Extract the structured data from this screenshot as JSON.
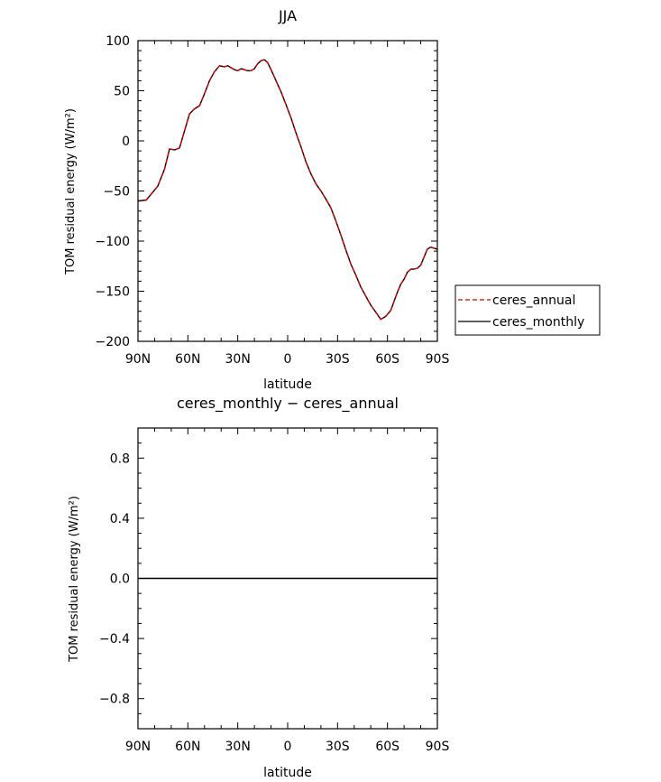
{
  "chart_data": [
    {
      "type": "line",
      "title": "JJA",
      "xlabel": "latitude",
      "ylabel": "TOM residual energy  (W/m²)",
      "xlim": [
        90,
        -90
      ],
      "ylim": [
        -200,
        100
      ],
      "x_ticks": [
        90,
        60,
        30,
        0,
        -30,
        -60,
        -90
      ],
      "x_tick_labels": [
        "90N",
        "60N",
        "30N",
        "0",
        "30S",
        "60S",
        "90S"
      ],
      "y_ticks": [
        100,
        50,
        0,
        -50,
        -100,
        -150,
        -200
      ],
      "y_tick_labels": [
        "100",
        "50",
        "0",
        "−50",
        "−100",
        "−150",
        "−200"
      ],
      "legend": {
        "position": "right",
        "entries": [
          {
            "name": "ceres_annual",
            "color": "#cc0000",
            "style": "dashed"
          },
          {
            "name": "ceres_monthly",
            "color": "#000000",
            "style": "solid"
          }
        ]
      },
      "x": [
        90,
        85,
        82,
        78,
        74,
        71,
        68,
        65,
        62,
        59,
        56,
        53,
        50,
        47,
        44,
        41,
        38,
        36,
        34,
        32,
        30,
        28,
        26,
        24,
        22,
        20,
        18,
        16,
        14,
        12,
        10,
        7,
        4,
        1,
        -2,
        -5,
        -8,
        -11,
        -14,
        -17,
        -20,
        -23,
        -26,
        -29,
        -32,
        -35,
        -38,
        -41,
        -44,
        -47,
        -50,
        -53,
        -56,
        -59,
        -62,
        -64,
        -66,
        -68,
        -70,
        -72,
        -74,
        -76,
        -78,
        -80,
        -82,
        -84,
        -86,
        -88,
        -90
      ],
      "series": [
        {
          "name": "ceres_annual",
          "color": "#cc0000",
          "values": [
            -60,
            -59,
            -53,
            -45,
            -28,
            -8,
            -9,
            -7,
            10,
            27,
            32,
            35,
            47,
            60,
            69,
            75,
            74,
            75,
            73,
            71,
            70,
            72,
            71,
            70,
            70,
            72,
            77,
            80,
            81,
            78,
            71,
            60,
            49,
            36,
            23,
            8,
            -6,
            -21,
            -33,
            -43,
            -50,
            -58,
            -67,
            -80,
            -94,
            -109,
            -123,
            -134,
            -146,
            -155,
            -164,
            -171,
            -178,
            -175,
            -169,
            -160,
            -151,
            -143,
            -138,
            -131,
            -128,
            -128,
            -127,
            -124,
            -116,
            -108,
            -106,
            -107,
            -108
          ]
        },
        {
          "name": "ceres_monthly",
          "color": "#000000",
          "values": [
            -60,
            -59,
            -53,
            -45,
            -28,
            -8,
            -9,
            -7,
            10,
            27,
            32,
            35,
            47,
            60,
            69,
            75,
            74,
            75,
            73,
            71,
            70,
            72,
            71,
            70,
            70,
            72,
            77,
            80,
            81,
            78,
            71,
            60,
            49,
            36,
            23,
            8,
            -6,
            -21,
            -33,
            -43,
            -50,
            -58,
            -67,
            -80,
            -94,
            -109,
            -123,
            -134,
            -146,
            -155,
            -164,
            -171,
            -178,
            -175,
            -169,
            -160,
            -151,
            -143,
            -138,
            -131,
            -128,
            -128,
            -127,
            -124,
            -116,
            -108,
            -106,
            -107,
            -108
          ]
        }
      ]
    },
    {
      "type": "line",
      "title": "ceres_monthly − ceres_annual",
      "xlabel": "latitude",
      "ylabel": "TOM residual energy  (W/m²)",
      "xlim": [
        90,
        -90
      ],
      "ylim": [
        -1.0,
        1.0
      ],
      "x_ticks": [
        90,
        60,
        30,
        0,
        -30,
        -60,
        -90
      ],
      "x_tick_labels": [
        "90N",
        "60N",
        "30N",
        "0",
        "30S",
        "60S",
        "90S"
      ],
      "y_ticks": [
        0.8,
        0.4,
        0.0,
        -0.4,
        -0.8
      ],
      "y_tick_labels": [
        "0.8",
        "0.4",
        "0.0",
        "−0.4",
        "−0.8"
      ],
      "x": [
        90,
        -90
      ],
      "series": [
        {
          "color": "#000000",
          "values": [
            0,
            0
          ]
        }
      ]
    }
  ]
}
